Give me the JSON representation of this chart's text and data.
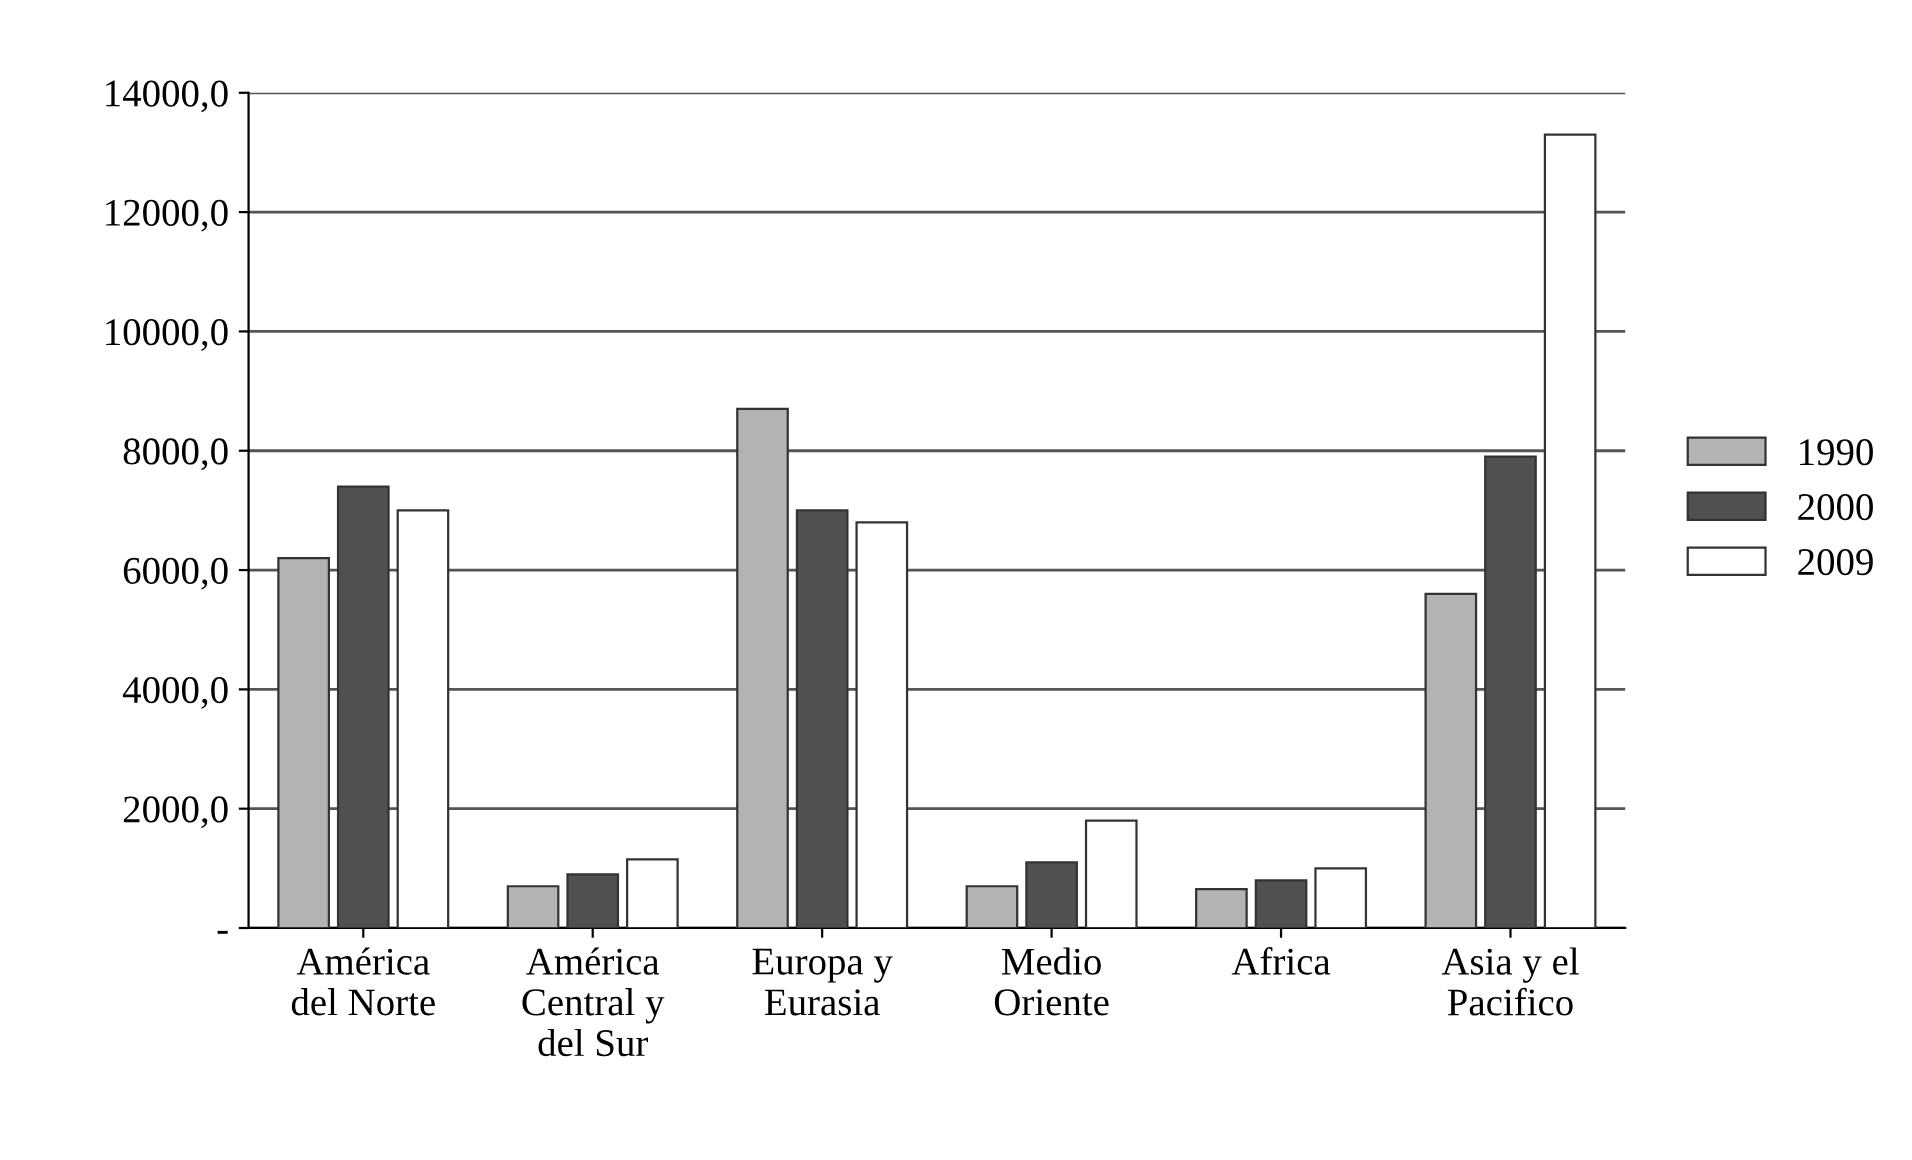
{
  "chart_data": {
    "type": "bar",
    "categories": [
      "América\ndel Norte",
      "América\nCentral y\ndel Sur",
      "Europa y\nEurasia",
      "Medio\nOriente",
      "Africa",
      "Asia y el\nPacifico"
    ],
    "series": [
      {
        "name": "1990",
        "color": "#b3b3b3",
        "values": [
          6200,
          700,
          8700,
          700,
          650,
          5600
        ]
      },
      {
        "name": "2000",
        "color": "#505050",
        "values": [
          7400,
          900,
          7000,
          1100,
          800,
          7900
        ]
      },
      {
        "name": "2009",
        "color": "#ffffff",
        "values": [
          7000,
          1150,
          6800,
          1800,
          1000,
          13300
        ]
      }
    ],
    "ylim": [
      0,
      14000
    ],
    "yticks": [
      {
        "value": 0,
        "label": "-"
      },
      {
        "value": 2000,
        "label": "2000,0"
      },
      {
        "value": 4000,
        "label": "4000,0"
      },
      {
        "value": 6000,
        "label": "6000,0"
      },
      {
        "value": 8000,
        "label": "8000,0"
      },
      {
        "value": 10000,
        "label": "10000,0"
      },
      {
        "value": 12000,
        "label": "12000,0"
      },
      {
        "value": 14000,
        "label": "14000,0"
      }
    ],
    "grid": "y",
    "legend": "right"
  }
}
